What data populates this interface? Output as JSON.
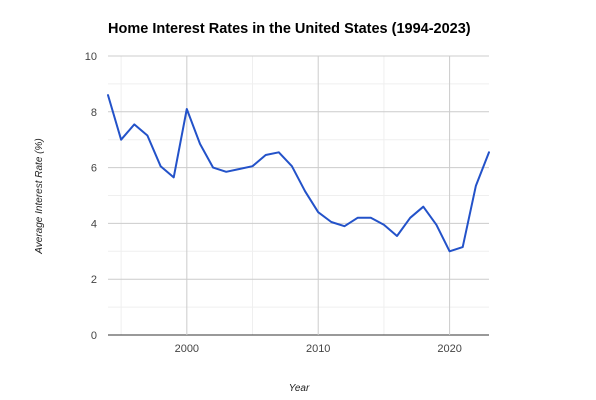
{
  "chart_data": {
    "type": "line",
    "title": "Home Interest Rates in the United States (1994-2023)",
    "xlabel": "Year",
    "ylabel": "Average Interest Rate (%)",
    "xlim": [
      1994,
      2023
    ],
    "ylim": [
      0,
      10
    ],
    "x_ticks": [
      2000,
      2010,
      2020
    ],
    "y_ticks": [
      0,
      2,
      4,
      6,
      8,
      10
    ],
    "grid": true,
    "legend": "none",
    "series": [
      {
        "color": "#2352c9",
        "x": [
          1994,
          1995,
          1996,
          1997,
          1998,
          1999,
          2000,
          2001,
          2002,
          2003,
          2004,
          2005,
          2006,
          2007,
          2008,
          2009,
          2010,
          2011,
          2012,
          2013,
          2014,
          2015,
          2016,
          2017,
          2018,
          2019,
          2020,
          2021,
          2022,
          2023
        ],
        "values": [
          8.6,
          7.0,
          7.55,
          7.15,
          6.05,
          5.65,
          8.1,
          6.85,
          6.0,
          5.85,
          5.95,
          6.05,
          6.45,
          6.55,
          6.05,
          5.15,
          4.4,
          4.05,
          3.9,
          4.2,
          4.2,
          3.95,
          3.55,
          4.2,
          4.6,
          3.95,
          3.0,
          3.15,
          5.35,
          6.55
        ]
      }
    ]
  }
}
